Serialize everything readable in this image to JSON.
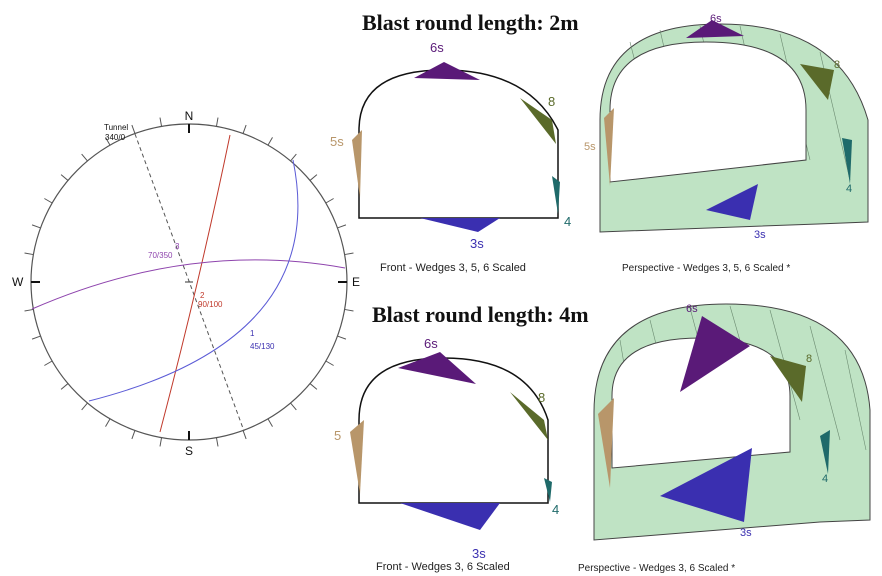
{
  "headings": {
    "round_2m": "Blast round length: 2m",
    "round_4m": "Blast round length: 4m"
  },
  "stereonet": {
    "north": "N",
    "south": "S",
    "east": "E",
    "west": "W",
    "tunnel_label": "Tunnel",
    "tunnel_orientation": "340/0",
    "joint_sets": [
      {
        "id": "1",
        "orientation": "45/130",
        "color": "#5b5bd6"
      },
      {
        "id": "2",
        "orientation": "90/100",
        "color": "#c0392b"
      },
      {
        "id": "3",
        "orientation": "70/350",
        "color": "#8e44ad"
      }
    ]
  },
  "panels": {
    "front_2m": {
      "caption": "Front - Wedges 3, 5, 6 Scaled",
      "labels": {
        "w6": "6s",
        "w5": "5s",
        "w8": "8",
        "w4": "4",
        "w3": "3s"
      }
    },
    "persp_2m": {
      "caption": "Perspective - Wedges 3, 5, 6 Scaled *",
      "labels": {
        "w6": "6s",
        "w5": "5s",
        "w8": "8",
        "w4": "4",
        "w3": "3s"
      }
    },
    "front_4m": {
      "caption": "Front - Wedges 3, 6 Scaled",
      "labels": {
        "w6": "6s",
        "w5": "5",
        "w8": "8",
        "w4": "4",
        "w3": "3s"
      }
    },
    "persp_4m": {
      "caption": "Perspective - Wedges 3, 6 Scaled *",
      "labels": {
        "w6": "6s",
        "w5": "",
        "w8": "8",
        "w4": "4",
        "w3": "3s"
      }
    }
  },
  "colors": {
    "wedge_purple": "#5a1a78",
    "wedge_olive": "#5a6a2a",
    "wedge_tan": "#b8966a",
    "wedge_blue": "#3a2fb0",
    "wedge_teal": "#1f6a6a",
    "tunnel_green": "#bfe3c4"
  }
}
